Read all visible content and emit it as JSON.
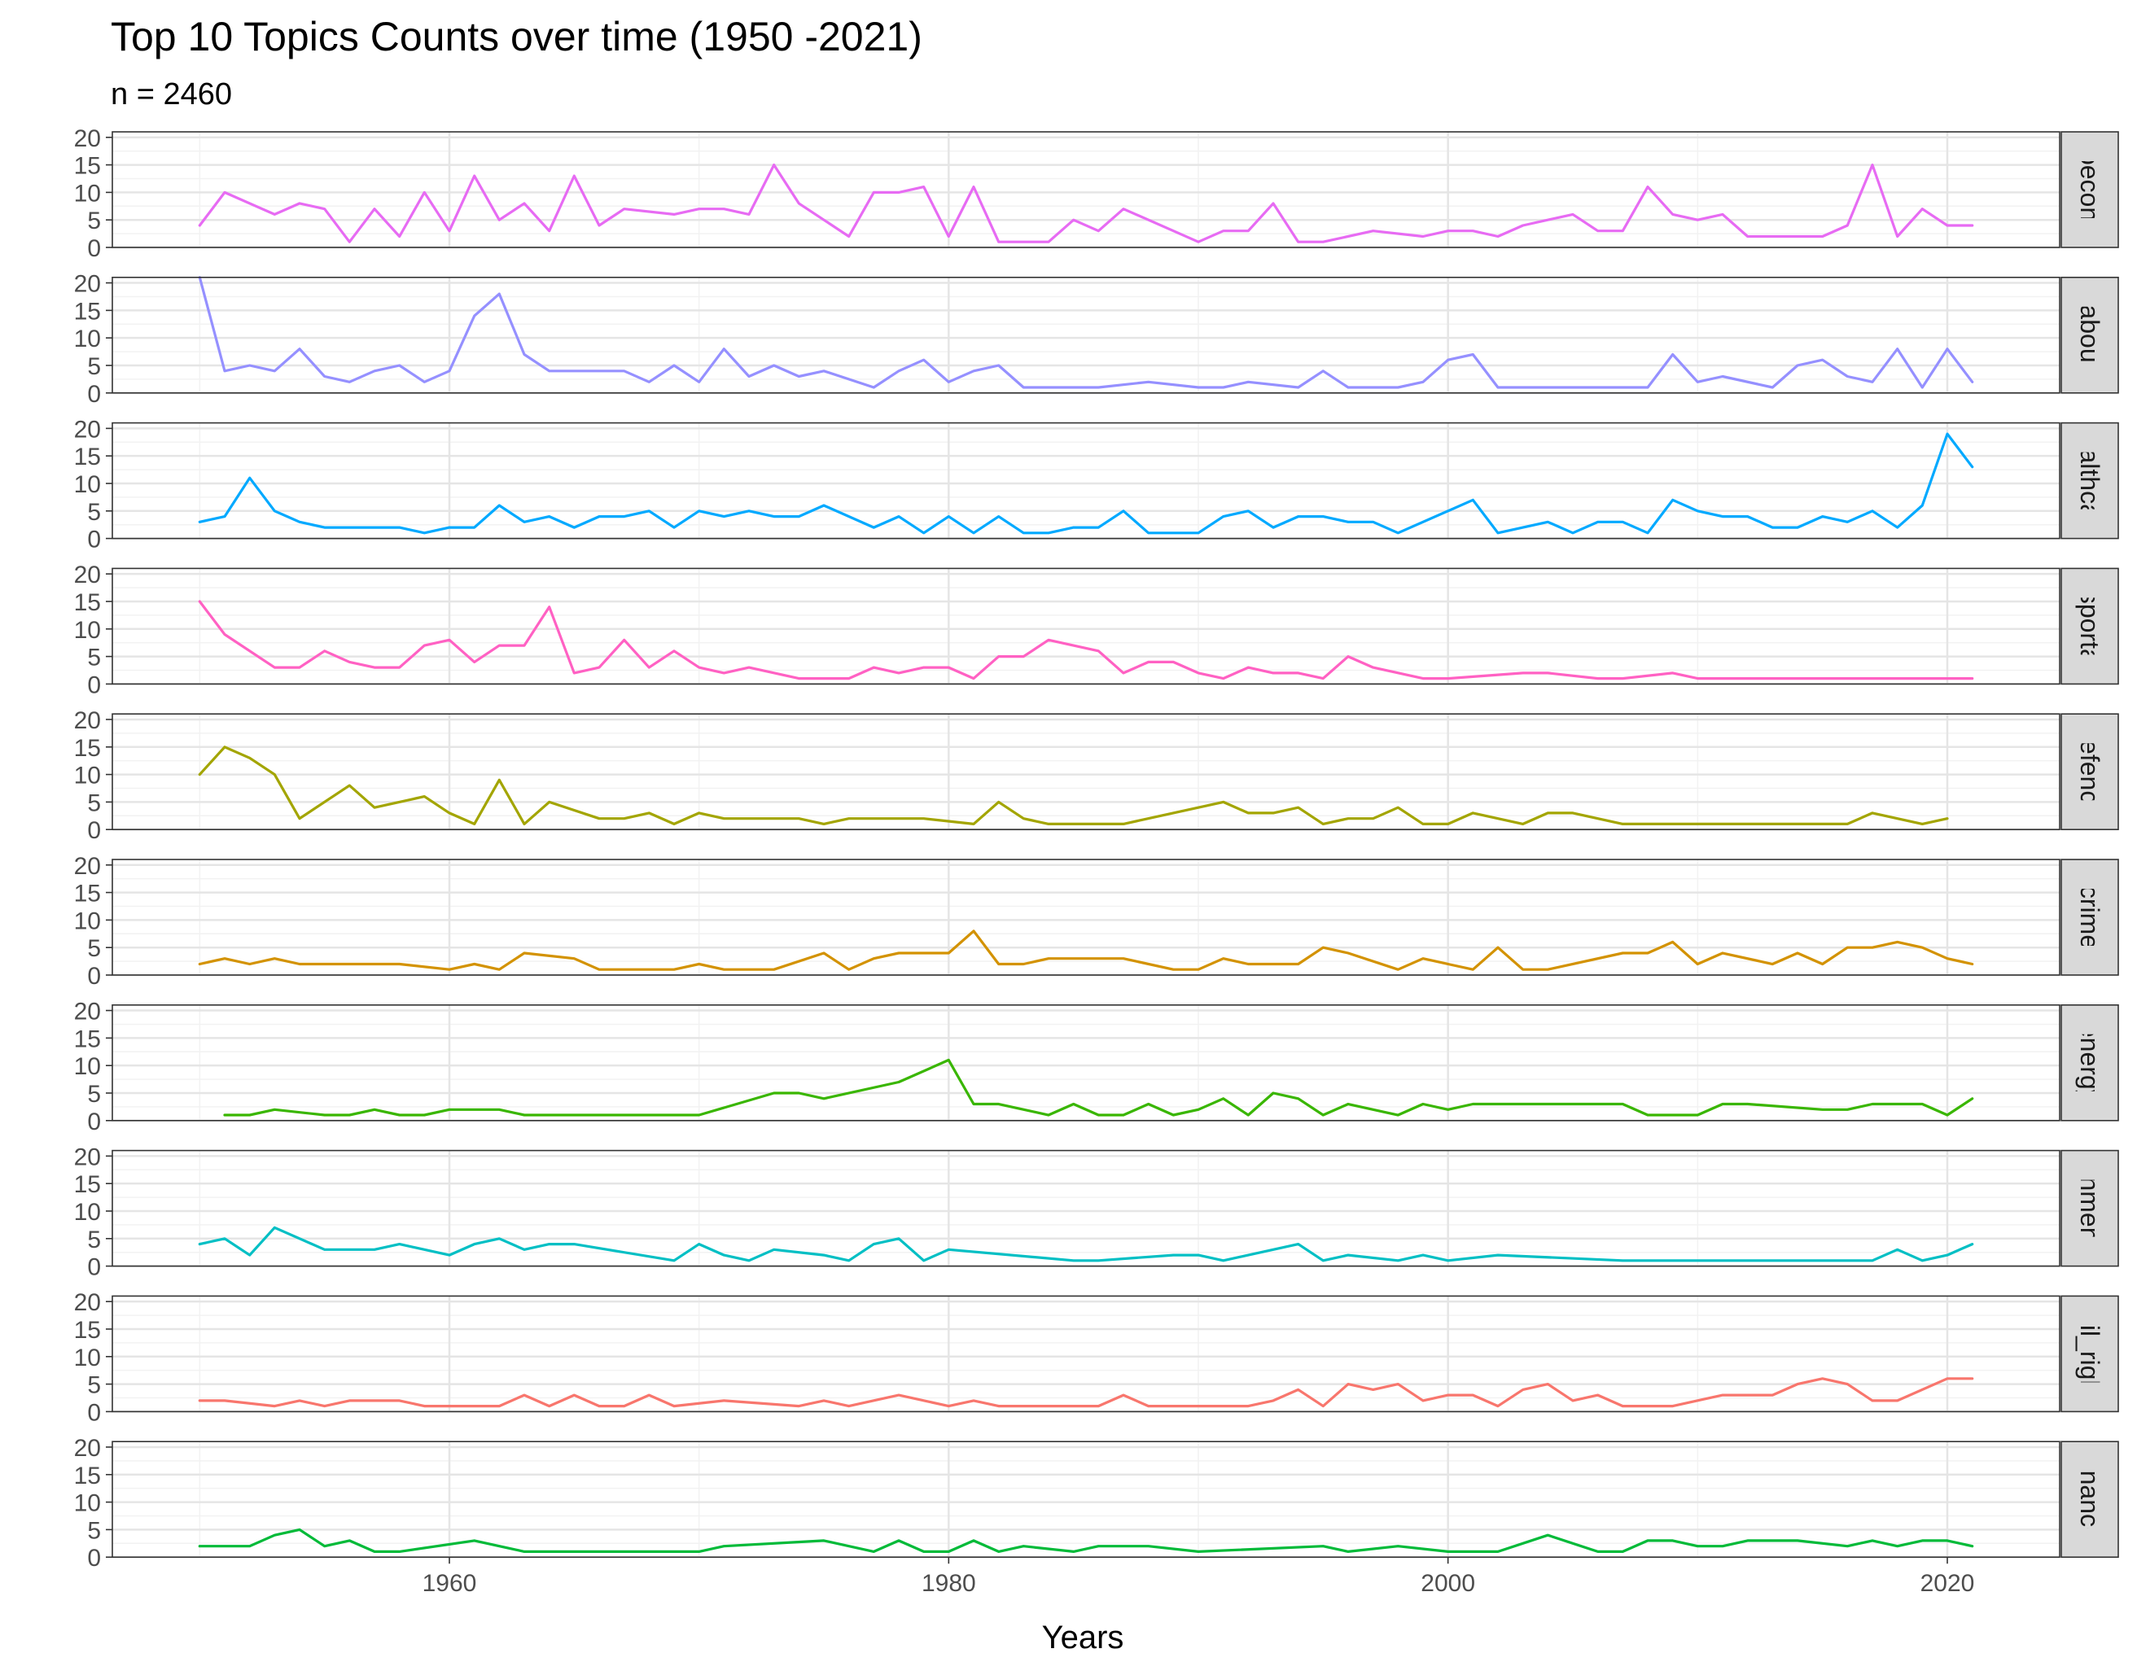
{
  "title": "Top 10 Topics Counts over time (1950 -2021)",
  "subtitle": "n = 2460",
  "chart_data": {
    "type": "line",
    "title": "Top 10 Topics Counts over time (1950 -2021)",
    "subtitle": "n = 2460",
    "xlabel": "Years",
    "ylabel": "",
    "xlim": [
      1946.5,
      2024.5
    ],
    "ylim": [
      0,
      21
    ],
    "x_ticks": [
      1960,
      1980,
      2000,
      2020
    ],
    "y_ticks": [
      0,
      5,
      10,
      15,
      20
    ],
    "grid": true,
    "legend": "none",
    "facet": "rows",
    "series": [
      {
        "name": "macroeconomics",
        "strip_label": "croeconon",
        "color": "#E76BF3",
        "x": [
          1950,
          1951,
          1953,
          1954,
          1955,
          1956,
          1957,
          1958,
          1959,
          1960,
          1961,
          1962,
          1963,
          1964,
          1965,
          1966,
          1967,
          1969,
          1970,
          1971,
          1972,
          1973,
          1974,
          1976,
          1977,
          1978,
          1979,
          1980,
          1981,
          1982,
          1983,
          1984,
          1985,
          1986,
          1987,
          1990,
          1991,
          1992,
          1993,
          1994,
          1995,
          1997,
          1999,
          2000,
          2001,
          2002,
          2003,
          2005,
          2006,
          2007,
          2008,
          2009,
          2010,
          2011,
          2012,
          2013,
          2014,
          2015,
          2016,
          2017,
          2018,
          2019,
          2020,
          2021
        ],
        "y": [
          4,
          10,
          6,
          8,
          7,
          1,
          7,
          2,
          10,
          3,
          13,
          5,
          8,
          3,
          13,
          4,
          7,
          6,
          7,
          7,
          6,
          15,
          8,
          2,
          10,
          10,
          11,
          2,
          11,
          1,
          1,
          1,
          5,
          3,
          7,
          1,
          3,
          3,
          8,
          1,
          1,
          3,
          2,
          3,
          3,
          2,
          4,
          6,
          3,
          3,
          11,
          6,
          5,
          6,
          2,
          2,
          2,
          2,
          4,
          15,
          2,
          7,
          4,
          4
        ]
      },
      {
        "name": "labour",
        "strip_label": "labour",
        "color": "#9590FF",
        "x": [
          1950,
          1951,
          1952,
          1953,
          1954,
          1955,
          1956,
          1957,
          1958,
          1959,
          1960,
          1961,
          1962,
          1963,
          1964,
          1967,
          1968,
          1969,
          1970,
          1971,
          1972,
          1973,
          1974,
          1975,
          1977,
          1978,
          1979,
          1980,
          1981,
          1982,
          1983,
          1986,
          1988,
          1990,
          1991,
          1992,
          1994,
          1995,
          1996,
          1998,
          1999,
          2000,
          2001,
          2002,
          2008,
          2009,
          2010,
          2011,
          2013,
          2014,
          2015,
          2016,
          2017,
          2018,
          2019,
          2020,
          2021
        ],
        "y": [
          21,
          4,
          5,
          4,
          8,
          3,
          2,
          4,
          5,
          2,
          4,
          14,
          18,
          7,
          4,
          4,
          2,
          5,
          2,
          8,
          3,
          5,
          3,
          4,
          1,
          4,
          6,
          2,
          4,
          5,
          1,
          1,
          2,
          1,
          1,
          2,
          1,
          4,
          1,
          1,
          2,
          6,
          7,
          1,
          1,
          7,
          2,
          3,
          1,
          5,
          6,
          3,
          2,
          8,
          1,
          8,
          2
        ]
      },
      {
        "name": "healthcare",
        "strip_label": "healthcare",
        "color": "#00A9FF",
        "x": [
          1950,
          1951,
          1952,
          1953,
          1954,
          1955,
          1958,
          1959,
          1960,
          1961,
          1962,
          1963,
          1964,
          1965,
          1966,
          1967,
          1968,
          1969,
          1970,
          1971,
          1972,
          1973,
          1974,
          1975,
          1977,
          1978,
          1979,
          1980,
          1981,
          1982,
          1983,
          1984,
          1985,
          1986,
          1987,
          1988,
          1990,
          1991,
          1992,
          1993,
          1994,
          1995,
          1996,
          1997,
          1998,
          2001,
          2002,
          2004,
          2005,
          2006,
          2007,
          2008,
          2009,
          2010,
          2011,
          2012,
          2013,
          2014,
          2015,
          2016,
          2017,
          2018,
          2019,
          2020,
          2021
        ],
        "y": [
          3,
          4,
          11,
          5,
          3,
          2,
          2,
          1,
          2,
          2,
          6,
          3,
          4,
          2,
          4,
          4,
          5,
          2,
          5,
          4,
          5,
          4,
          4,
          6,
          2,
          4,
          1,
          4,
          1,
          4,
          1,
          1,
          2,
          2,
          5,
          1,
          1,
          4,
          5,
          2,
          4,
          4,
          3,
          3,
          1,
          7,
          1,
          3,
          1,
          3,
          3,
          1,
          7,
          5,
          4,
          4,
          2,
          2,
          4,
          3,
          5,
          2,
          6,
          19,
          13
        ]
      },
      {
        "name": "transportation",
        "strip_label": "ansportatio",
        "color": "#FF61C3",
        "x": [
          1950,
          1951,
          1953,
          1954,
          1955,
          1956,
          1957,
          1958,
          1959,
          1960,
          1961,
          1962,
          1963,
          1964,
          1965,
          1966,
          1967,
          1968,
          1969,
          1970,
          1971,
          1972,
          1974,
          1976,
          1977,
          1978,
          1979,
          1980,
          1981,
          1982,
          1983,
          1984,
          1986,
          1987,
          1988,
          1989,
          1990,
          1991,
          1992,
          1993,
          1994,
          1995,
          1996,
          1997,
          1999,
          2000,
          2003,
          2004,
          2006,
          2007,
          2009,
          2010,
          2021
        ],
        "y": [
          15,
          9,
          3,
          3,
          6,
          4,
          3,
          3,
          7,
          8,
          4,
          7,
          7,
          14,
          2,
          3,
          8,
          3,
          6,
          3,
          2,
          3,
          1,
          1,
          3,
          2,
          3,
          3,
          1,
          5,
          5,
          8,
          6,
          2,
          4,
          4,
          2,
          1,
          3,
          2,
          2,
          1,
          5,
          3,
          1,
          1,
          2,
          2,
          1,
          1,
          2,
          1,
          1
        ]
      },
      {
        "name": "defence",
        "strip_label": "defence",
        "color": "#A3A500",
        "x": [
          1950,
          1951,
          1952,
          1953,
          1954,
          1956,
          1957,
          1959,
          1960,
          1961,
          1962,
          1963,
          1964,
          1966,
          1967,
          1968,
          1969,
          1970,
          1971,
          1974,
          1975,
          1976,
          1979,
          1981,
          1982,
          1983,
          1984,
          1987,
          1991,
          1992,
          1993,
          1994,
          1995,
          1996,
          1997,
          1998,
          1999,
          2000,
          2001,
          2003,
          2004,
          2005,
          2007,
          2016,
          2017,
          2019,
          2020
        ],
        "y": [
          10,
          15,
          13,
          10,
          2,
          8,
          4,
          6,
          3,
          1,
          9,
          1,
          5,
          2,
          2,
          3,
          1,
          3,
          2,
          2,
          1,
          2,
          2,
          1,
          5,
          2,
          1,
          1,
          5,
          3,
          3,
          4,
          1,
          2,
          2,
          4,
          1,
          1,
          3,
          1,
          3,
          3,
          1,
          1,
          3,
          1,
          2
        ]
      },
      {
        "name": "crime",
        "strip_label": "crime",
        "color": "#D39200",
        "x": [
          1950,
          1951,
          1952,
          1953,
          1954,
          1958,
          1960,
          1961,
          1962,
          1963,
          1965,
          1966,
          1969,
          1970,
          1971,
          1973,
          1975,
          1976,
          1977,
          1978,
          1980,
          1981,
          1982,
          1983,
          1984,
          1987,
          1989,
          1990,
          1991,
          1992,
          1994,
          1995,
          1996,
          1998,
          1999,
          2000,
          2001,
          2002,
          2003,
          2004,
          2007,
          2008,
          2009,
          2010,
          2011,
          2013,
          2014,
          2015,
          2016,
          2017,
          2018,
          2019,
          2020,
          2021
        ],
        "y": [
          2,
          3,
          2,
          3,
          2,
          2,
          1,
          2,
          1,
          4,
          3,
          1,
          1,
          2,
          1,
          1,
          4,
          1,
          3,
          4,
          4,
          8,
          2,
          2,
          3,
          3,
          1,
          1,
          3,
          2,
          2,
          5,
          4,
          1,
          3,
          2,
          1,
          5,
          1,
          1,
          4,
          4,
          6,
          2,
          4,
          2,
          4,
          2,
          5,
          5,
          6,
          5,
          3,
          2
        ]
      },
      {
        "name": "energy",
        "strip_label": "energy",
        "color": "#39B600",
        "x": [
          1951,
          1952,
          1953,
          1955,
          1956,
          1957,
          1958,
          1959,
          1960,
          1962,
          1963,
          1970,
          1973,
          1974,
          1975,
          1978,
          1980,
          1981,
          1982,
          1984,
          1985,
          1986,
          1987,
          1988,
          1989,
          1990,
          1991,
          1992,
          1993,
          1994,
          1995,
          1996,
          1998,
          1999,
          2000,
          2001,
          2007,
          2008,
          2009,
          2010,
          2011,
          2012,
          2015,
          2016,
          2017,
          2019,
          2020,
          2021
        ],
        "y": [
          1,
          1,
          2,
          1,
          1,
          2,
          1,
          1,
          2,
          2,
          1,
          1,
          5,
          5,
          4,
          7,
          11,
          3,
          3,
          1,
          3,
          1,
          1,
          3,
          1,
          2,
          4,
          1,
          5,
          4,
          1,
          3,
          1,
          3,
          2,
          3,
          3,
          1,
          1,
          1,
          3,
          3,
          2,
          2,
          3,
          3,
          1,
          4
        ]
      },
      {
        "name": "government_operations",
        "strip_label": "ernment_",
        "color": "#00BFC4",
        "x": [
          1950,
          1951,
          1952,
          1953,
          1955,
          1957,
          1958,
          1960,
          1961,
          1962,
          1963,
          1964,
          1965,
          1969,
          1970,
          1971,
          1972,
          1973,
          1975,
          1976,
          1977,
          1978,
          1979,
          1980,
          1985,
          1986,
          1989,
          1990,
          1991,
          1994,
          1995,
          1996,
          1998,
          1999,
          2000,
          2002,
          2007,
          2017,
          2018,
          2019,
          2020,
          2021
        ],
        "y": [
          4,
          5,
          2,
          7,
          3,
          3,
          4,
          2,
          4,
          5,
          3,
          4,
          4,
          1,
          4,
          2,
          1,
          3,
          2,
          1,
          4,
          5,
          1,
          3,
          1,
          1,
          2,
          2,
          1,
          4,
          1,
          2,
          1,
          2,
          1,
          2,
          1,
          1,
          3,
          1,
          2,
          4
        ]
      },
      {
        "name": "civil_rights",
        "strip_label": "civil_rights",
        "color": "#F8766D",
        "x": [
          1950,
          1951,
          1953,
          1954,
          1955,
          1956,
          1958,
          1959,
          1962,
          1963,
          1964,
          1965,
          1966,
          1967,
          1968,
          1969,
          1971,
          1974,
          1975,
          1976,
          1978,
          1980,
          1981,
          1982,
          1986,
          1987,
          1988,
          1989,
          1992,
          1993,
          1994,
          1995,
          1996,
          1997,
          1998,
          1999,
          2000,
          2001,
          2002,
          2003,
          2004,
          2005,
          2006,
          2007,
          2009,
          2011,
          2013,
          2014,
          2015,
          2016,
          2017,
          2018,
          2020,
          2021
        ],
        "y": [
          2,
          2,
          1,
          2,
          1,
          2,
          2,
          1,
          1,
          3,
          1,
          3,
          1,
          1,
          3,
          1,
          2,
          1,
          2,
          1,
          3,
          1,
          2,
          1,
          1,
          3,
          1,
          1,
          1,
          2,
          4,
          1,
          5,
          4,
          5,
          2,
          3,
          3,
          1,
          4,
          5,
          2,
          3,
          1,
          1,
          3,
          3,
          5,
          6,
          5,
          2,
          2,
          6,
          6
        ]
      },
      {
        "name": "finance",
        "strip_label": "finance",
        "color": "#00BA38",
        "x": [
          1950,
          1952,
          1953,
          1954,
          1955,
          1956,
          1957,
          1958,
          1961,
          1963,
          1970,
          1971,
          1975,
          1977,
          1978,
          1979,
          1980,
          1981,
          1982,
          1983,
          1985,
          1986,
          1988,
          1990,
          1995,
          1996,
          1998,
          2000,
          2002,
          2004,
          2006,
          2007,
          2008,
          2009,
          2010,
          2011,
          2012,
          2014,
          2016,
          2017,
          2018,
          2019,
          2020,
          2021
        ],
        "y": [
          2,
          2,
          4,
          5,
          2,
          3,
          1,
          1,
          3,
          1,
          1,
          2,
          3,
          1,
          3,
          1,
          1,
          3,
          1,
          2,
          1,
          2,
          2,
          1,
          2,
          1,
          2,
          1,
          1,
          4,
          1,
          1,
          3,
          3,
          2,
          2,
          3,
          3,
          2,
          3,
          2,
          3,
          3,
          2
        ]
      }
    ]
  }
}
